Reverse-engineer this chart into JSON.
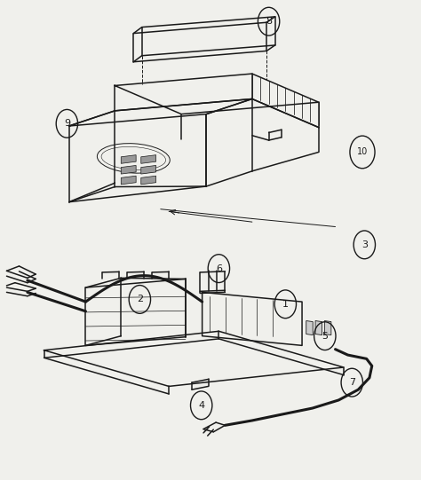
{
  "bg_color": "#f0f0ec",
  "line_color": "#1a1a1a",
  "fig_width": 4.74,
  "fig_height": 5.41,
  "dpi": 100
}
